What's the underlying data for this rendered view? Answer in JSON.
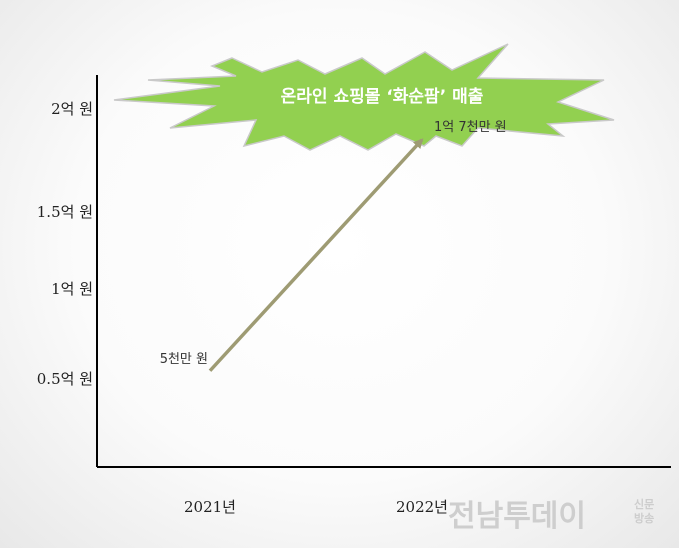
{
  "chart_data": {
    "type": "line",
    "title": "온라인 쇼핑몰 ‘화순팜’ 매출",
    "categories": [
      "2021년",
      "2022년"
    ],
    "series": [
      {
        "values": [
          5000,
          17000
        ],
        "data_labels": [
          "5천만 원",
          "1억 7천만 원"
        ]
      }
    ],
    "y_unit": "만 원",
    "yticks": [
      {
        "value": 5000,
        "label": "0.5억 원"
      },
      {
        "value": 10000,
        "label": "1억 원"
      },
      {
        "value": 15000,
        "label": "1.5억 원"
      },
      {
        "value": 20000,
        "label": "2억 원"
      }
    ],
    "ylim": [
      0,
      21000
    ],
    "grid": false,
    "line_color": "#9e9b73",
    "title_burst_color": "#92d050"
  },
  "watermark": {
    "brand": "전남투데이",
    "tag": "신문방송"
  }
}
